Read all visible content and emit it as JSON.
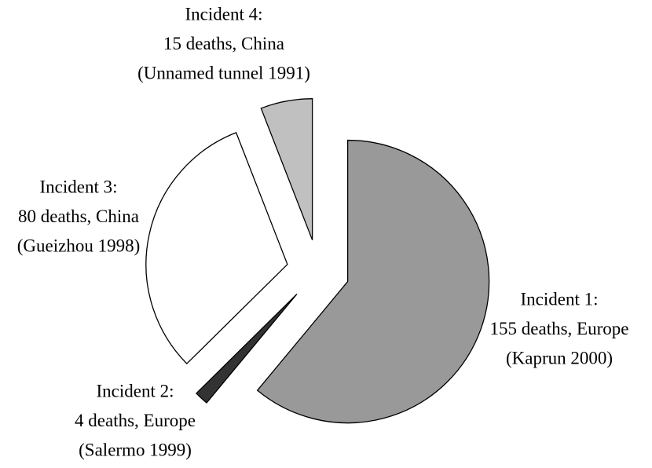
{
  "chart_data": {
    "type": "pie",
    "categories": [
      "Incident 1:",
      "Incident 2:",
      "Incident 3:",
      "Incident 4:"
    ],
    "values": [
      155,
      4,
      80,
      15
    ],
    "value_labels": [
      "155 deaths, Europe",
      "4 deaths, Europe",
      "80 deaths, China",
      "15 deaths, China"
    ],
    "locations": [
      "(Kaprun 2000)",
      "(Salermo 1999)",
      "(Gueizhou 1998)",
      "(Unnamed tunnel 1991)"
    ],
    "colors": [
      "#999999",
      "#333333",
      "#ffffff",
      "#c0c0c0"
    ]
  }
}
